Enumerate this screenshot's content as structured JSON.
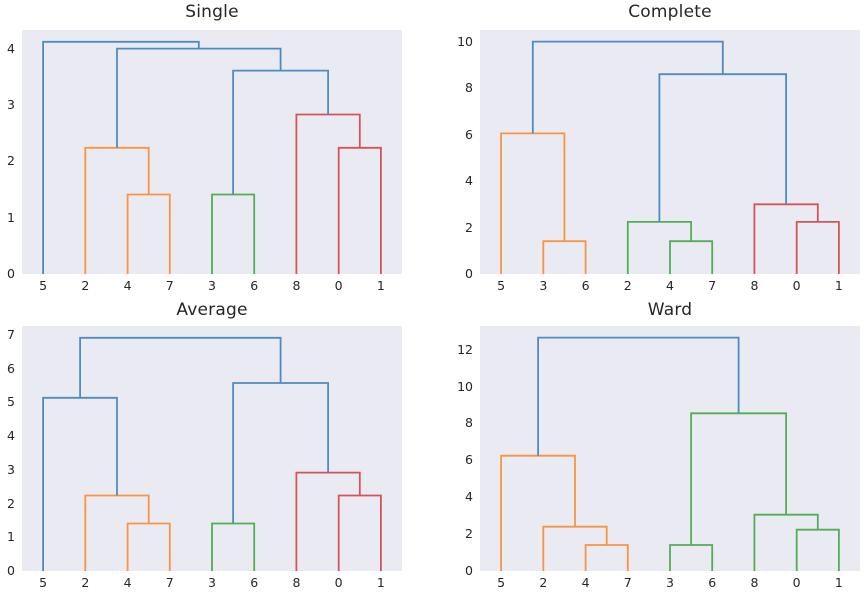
{
  "figure": {
    "background": "#ffffff",
    "plot_background": "#eaeaf2",
    "text_color": "#262626",
    "line_width": 1.8,
    "linkage_methods": [
      "Single",
      "Complete",
      "Average",
      "Ward"
    ]
  },
  "palette": {
    "blue": "#4c8dbf",
    "orange": "#fb9440",
    "green": "#53ad57",
    "red": "#d45555"
  },
  "chart_data": [
    {
      "type": "dendrogram",
      "title": "Single",
      "leaf_labels": [
        "5",
        "2",
        "4",
        "7",
        "3",
        "6",
        "8",
        "0",
        "1"
      ],
      "yticks": [
        0,
        1,
        2,
        3,
        4
      ],
      "ylim": [
        0,
        4.33
      ],
      "grid": false,
      "legend": null,
      "links": [
        {
          "a": 2,
          "b": 3,
          "height": 1.41,
          "color": "orange"
        },
        {
          "a": 1,
          "b": 9,
          "height": 2.24,
          "color": "orange"
        },
        {
          "a": 4,
          "b": 5,
          "height": 1.41,
          "color": "green"
        },
        {
          "a": 7,
          "b": 8,
          "height": 2.24,
          "color": "red"
        },
        {
          "a": 6,
          "b": 12,
          "height": 2.83,
          "color": "red"
        },
        {
          "a": 11,
          "b": 13,
          "height": 3.61,
          "color": "blue"
        },
        {
          "a": 10,
          "b": 14,
          "height": 4.0,
          "color": "blue"
        },
        {
          "a": 0,
          "b": 15,
          "height": 4.12,
          "color": "blue"
        }
      ]
    },
    {
      "type": "dendrogram",
      "title": "Complete",
      "leaf_labels": [
        "5",
        "3",
        "6",
        "2",
        "4",
        "7",
        "8",
        "0",
        "1"
      ],
      "yticks": [
        0,
        2,
        4,
        6,
        8,
        10
      ],
      "ylim": [
        0,
        10.5
      ],
      "grid": false,
      "legend": null,
      "links": [
        {
          "a": 1,
          "b": 2,
          "height": 1.41,
          "color": "orange"
        },
        {
          "a": 0,
          "b": 9,
          "height": 6.05,
          "color": "orange"
        },
        {
          "a": 4,
          "b": 5,
          "height": 1.41,
          "color": "green"
        },
        {
          "a": 3,
          "b": 11,
          "height": 2.24,
          "color": "green"
        },
        {
          "a": 7,
          "b": 8,
          "height": 2.24,
          "color": "red"
        },
        {
          "a": 6,
          "b": 13,
          "height": 3.0,
          "color": "red"
        },
        {
          "a": 12,
          "b": 14,
          "height": 8.6,
          "color": "blue"
        },
        {
          "a": 10,
          "b": 15,
          "height": 10.0,
          "color": "blue"
        }
      ]
    },
    {
      "type": "dendrogram",
      "title": "Average",
      "leaf_labels": [
        "5",
        "2",
        "4",
        "7",
        "3",
        "6",
        "8",
        "0",
        "1"
      ],
      "yticks": [
        0,
        1,
        2,
        3,
        4,
        5,
        6,
        7
      ],
      "ylim": [
        0,
        7.27
      ],
      "grid": false,
      "legend": null,
      "links": [
        {
          "a": 2,
          "b": 3,
          "height": 1.41,
          "color": "orange"
        },
        {
          "a": 1,
          "b": 9,
          "height": 2.24,
          "color": "orange"
        },
        {
          "a": 4,
          "b": 5,
          "height": 1.41,
          "color": "green"
        },
        {
          "a": 7,
          "b": 8,
          "height": 2.24,
          "color": "red"
        },
        {
          "a": 6,
          "b": 12,
          "height": 2.92,
          "color": "red"
        },
        {
          "a": 0,
          "b": 10,
          "height": 5.14,
          "color": "blue"
        },
        {
          "a": 11,
          "b": 13,
          "height": 5.58,
          "color": "blue"
        },
        {
          "a": 14,
          "b": 15,
          "height": 6.92,
          "color": "blue"
        }
      ]
    },
    {
      "type": "dendrogram",
      "title": "Ward",
      "leaf_labels": [
        "5",
        "2",
        "4",
        "7",
        "3",
        "6",
        "8",
        "0",
        "1"
      ],
      "yticks": [
        0,
        2,
        4,
        6,
        8,
        10,
        12
      ],
      "ylim": [
        0,
        13.28
      ],
      "grid": false,
      "legend": null,
      "links": [
        {
          "a": 2,
          "b": 3,
          "height": 1.41,
          "color": "orange"
        },
        {
          "a": 1,
          "b": 9,
          "height": 2.4,
          "color": "orange"
        },
        {
          "a": 0,
          "b": 10,
          "height": 6.25,
          "color": "orange"
        },
        {
          "a": 4,
          "b": 5,
          "height": 1.41,
          "color": "green"
        },
        {
          "a": 7,
          "b": 8,
          "height": 2.24,
          "color": "green"
        },
        {
          "a": 6,
          "b": 13,
          "height": 3.05,
          "color": "green"
        },
        {
          "a": 12,
          "b": 14,
          "height": 8.55,
          "color": "green"
        },
        {
          "a": 11,
          "b": 15,
          "height": 12.65,
          "color": "blue"
        }
      ]
    }
  ]
}
